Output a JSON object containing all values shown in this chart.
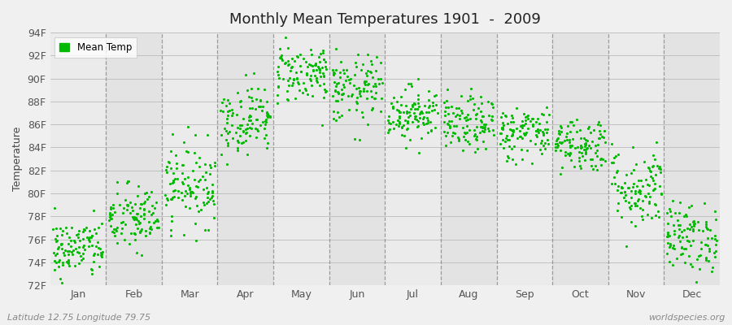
{
  "title": "Monthly Mean Temperatures 1901  -  2009",
  "ylabel": "Temperature",
  "xlabel_months": [
    "Jan",
    "Feb",
    "Mar",
    "Apr",
    "May",
    "Jun",
    "Jul",
    "Aug",
    "Sep",
    "Oct",
    "Nov",
    "Dec"
  ],
  "ytick_labels": [
    "72F",
    "74F",
    "76F",
    "78F",
    "80F",
    "82F",
    "84F",
    "86F",
    "88F",
    "90F",
    "92F",
    "94F"
  ],
  "ytick_values": [
    72,
    74,
    76,
    78,
    80,
    82,
    84,
    86,
    88,
    90,
    92,
    94
  ],
  "ylim": [
    72,
    94
  ],
  "dot_color": "#00BB00",
  "background_color": "#f0f0f0",
  "legend_label": "Mean Temp",
  "subtitle_left": "Latitude 12.75 Longitude 79.75",
  "subtitle_right": "worldspecies.org",
  "n_years": 109,
  "monthly_mean_temps": [
    75.2,
    77.8,
    80.8,
    86.5,
    90.5,
    89.0,
    87.0,
    86.0,
    85.3,
    84.3,
    80.5,
    76.2
  ],
  "monthly_std": [
    1.3,
    1.5,
    1.8,
    1.5,
    1.3,
    1.5,
    1.2,
    1.2,
    1.2,
    1.2,
    1.8,
    1.5
  ],
  "band_colors": [
    "#ebebeb",
    "#e3e3e3"
  ]
}
